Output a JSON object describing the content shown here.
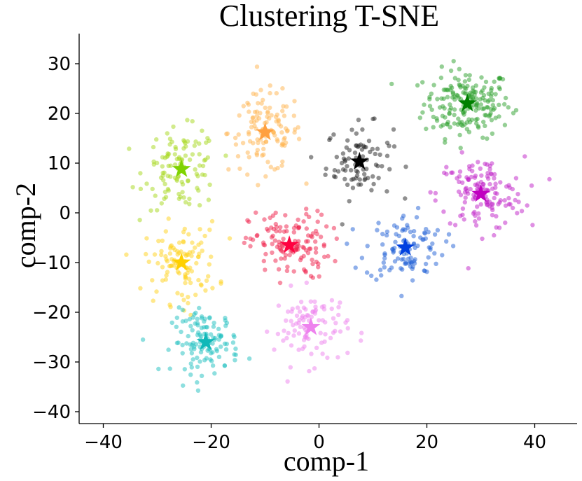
{
  "chart_data": {
    "type": "scatter",
    "title": "Clustering T-SNE",
    "xlabel": "comp-1",
    "ylabel": "comp-2",
    "xlim": [
      -45,
      48
    ],
    "ylim": [
      -42,
      36
    ],
    "xticks": [
      -40,
      -20,
      0,
      20,
      40
    ],
    "yticks": [
      -40,
      -30,
      -20,
      -10,
      0,
      10,
      20,
      30
    ],
    "xtick_labels": [
      "−40",
      "−20",
      "0",
      "20",
      "40"
    ],
    "ytick_labels": [
      "−40",
      "−30",
      "−20",
      "−10",
      "0",
      "10",
      "20",
      "30"
    ],
    "grid": false,
    "legend": "none",
    "point_alpha": 0.5,
    "clusters": [
      {
        "name": "cluster-green",
        "color": "#2ca02c",
        "star_color": "#008000",
        "centroid": [
          27.5,
          22
        ],
        "spread": [
          6.5,
          5.5
        ],
        "count": 190
      },
      {
        "name": "cluster-black",
        "color": "#222222",
        "star_color": "#000000",
        "centroid": [
          7.5,
          10.3
        ],
        "spread": [
          5.0,
          6.0
        ],
        "count": 90
      },
      {
        "name": "cluster-orange",
        "color": "#ffb34d",
        "star_color": "#ffa040",
        "centroid": [
          -10,
          16.2
        ],
        "spread": [
          5.5,
          6.5
        ],
        "count": 120
      },
      {
        "name": "cluster-lime",
        "color": "#a6d81a",
        "star_color": "#7fd300",
        "centroid": [
          -25.5,
          8.8
        ],
        "spread": [
          5.5,
          6.5
        ],
        "count": 110
      },
      {
        "name": "cluster-magenta",
        "color": "#c020c8",
        "star_color": "#c000c0",
        "centroid": [
          30,
          3.8
        ],
        "spread": [
          6.5,
          6.0
        ],
        "count": 140
      },
      {
        "name": "cluster-blue",
        "color": "#1f5fd6",
        "star_color": "#0040e0",
        "centroid": [
          16,
          -7
        ],
        "spread": [
          6.0,
          5.5
        ],
        "count": 110
      },
      {
        "name": "cluster-crimson",
        "color": "#f0204a",
        "star_color": "#ff0040",
        "centroid": [
          -5.5,
          -6.5
        ],
        "spread": [
          6.0,
          5.5
        ],
        "count": 130
      },
      {
        "name": "cluster-yellow",
        "color": "#ffd21a",
        "star_color": "#ffd000",
        "centroid": [
          -25.5,
          -10
        ],
        "spread": [
          5.5,
          6.5
        ],
        "count": 110
      },
      {
        "name": "cluster-teal",
        "color": "#1ec0c0",
        "star_color": "#10b8b8",
        "centroid": [
          -21,
          -26
        ],
        "spread": [
          5.0,
          5.0
        ],
        "count": 120
      },
      {
        "name": "cluster-violet",
        "color": "#ee82ee",
        "star_color": "#ee82ee",
        "centroid": [
          -1.5,
          -23
        ],
        "spread": [
          5.5,
          6.0
        ],
        "count": 95
      }
    ]
  }
}
